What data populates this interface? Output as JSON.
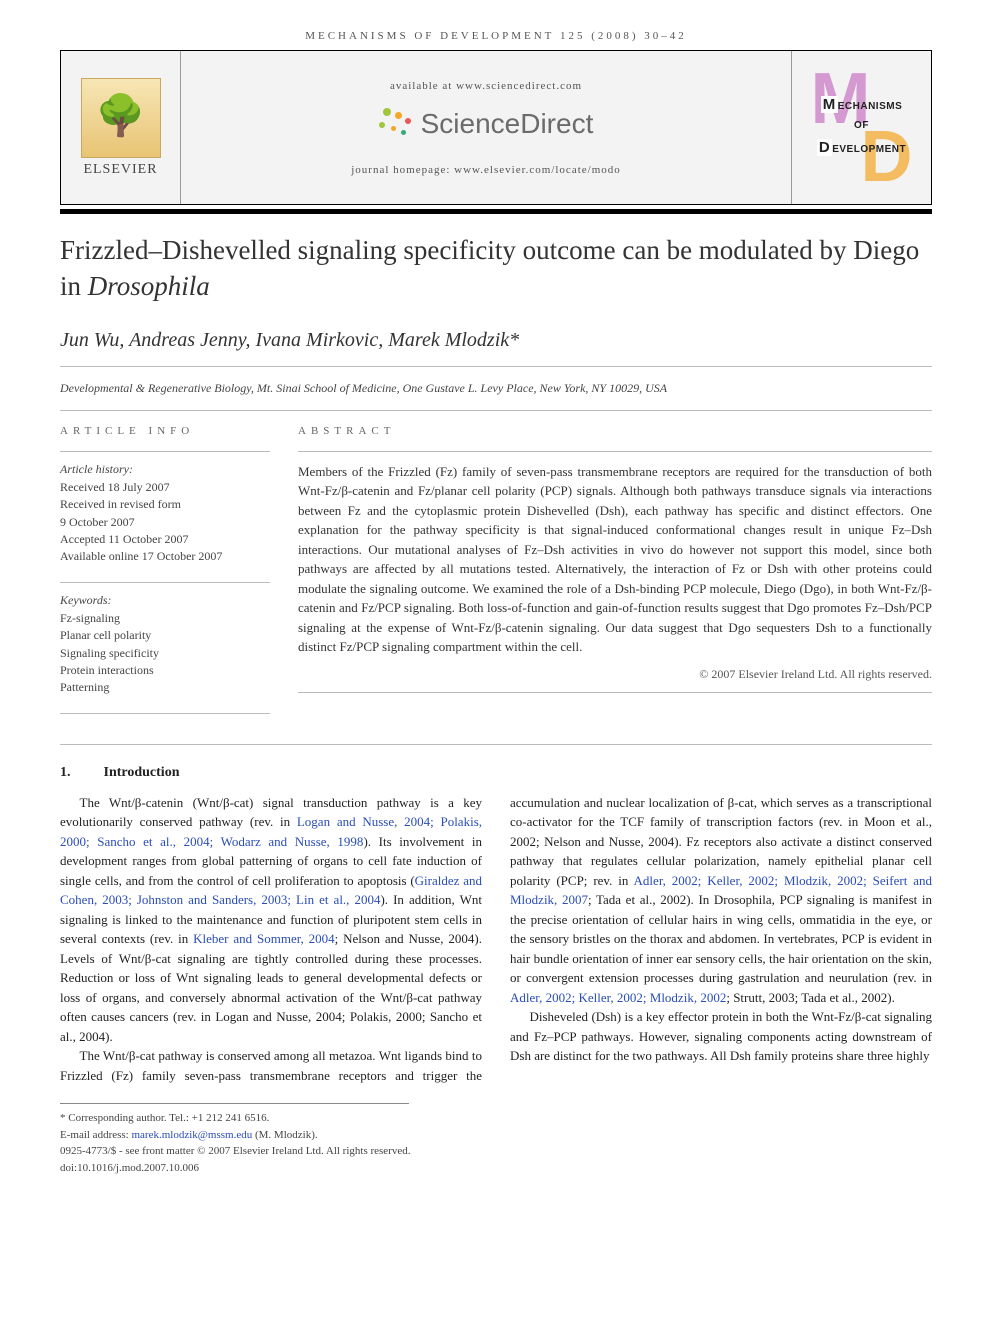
{
  "header": {
    "running_head": "MECHANISMS OF DEVELOPMENT 125 (2008) 30–42",
    "available_at": "available at www.sciencedirect.com",
    "sd_name": "ScienceDirect",
    "homepage": "journal homepage: www.elsevier.com/locate/modo",
    "elsevier_name": "ELSEVIER",
    "journal_logo": {
      "line1": "MECHANISMS",
      "line2": "OF",
      "line3": "DEVELOPMENT",
      "big_m": "M",
      "big_d": "D"
    }
  },
  "article": {
    "title_html": "Frizzled–Dishevelled signaling specificity outcome can be modulated by Diego in <em>Drosophila</em>",
    "authors": "Jun Wu, Andreas Jenny, Ivana Mirkovic, Marek Mlodzik*",
    "affiliation": "Developmental & Regenerative Biology, Mt. Sinai School of Medicine, One Gustave L. Levy Place, New York, NY 10029, USA"
  },
  "article_info": {
    "label": "ARTICLE INFO",
    "history_heading": "Article history:",
    "history": [
      "Received 18 July 2007",
      "Received in revised form",
      "9 October 2007",
      "Accepted 11 October 2007",
      "Available online 17 October 2007"
    ],
    "keywords_heading": "Keywords:",
    "keywords": [
      "Fz-signaling",
      "Planar cell polarity",
      "Signaling specificity",
      "Protein interactions",
      "Patterning"
    ]
  },
  "abstract": {
    "label": "ABSTRACT",
    "text": "Members of the Frizzled (Fz) family of seven-pass transmembrane receptors are required for the transduction of both Wnt-Fz/β-catenin and Fz/planar cell polarity (PCP) signals. Although both pathways transduce signals via interactions between Fz and the cytoplasmic protein Dishevelled (Dsh), each pathway has specific and distinct effectors. One explanation for the pathway specificity is that signal-induced conformational changes result in unique Fz–Dsh interactions. Our mutational analyses of Fz–Dsh activities in vivo do however not support this model, since both pathways are affected by all mutations tested. Alternatively, the interaction of Fz or Dsh with other proteins could modulate the signaling outcome. We examined the role of a Dsh-binding PCP molecule, Diego (Dgo), in both Wnt-Fz/β-catenin and Fz/PCP signaling. Both loss-of-function and gain-of-function results suggest that Dgo promotes Fz–Dsh/PCP signaling at the expense of Wnt-Fz/β-catenin signaling. Our data suggest that Dgo sequesters Dsh to a functionally distinct Fz/PCP signaling compartment within the cell.",
    "copyright": "© 2007 Elsevier Ireland Ltd. All rights reserved."
  },
  "section1": {
    "num": "1.",
    "title": "Introduction"
  },
  "body": {
    "p1_a": "The Wnt/β-catenin (Wnt/β-cat) signal transduction pathway is a key evolutionarily conserved pathway (rev. in ",
    "p1_link1": "Logan and Nusse, 2004; Polakis, 2000; Sancho et al., 2004; Wodarz and Nusse, 1998",
    "p1_b": "). Its involvement in development ranges from global patterning of organs to cell fate induction of single cells, and from the control of cell proliferation to apoptosis (",
    "p1_link2": "Giraldez and Cohen, 2003; Johnston and Sanders, 2003; Lin et al., 2004",
    "p1_c": "). In addition, Wnt signaling is linked to the maintenance and function of pluripotent stem cells in several contexts (rev. in ",
    "p1_link3": "Kleber and Sommer, 2004",
    "p1_d": "; Nelson and Nusse, 2004). Levels of Wnt/β-cat signaling are tightly controlled during these processes. Reduction or loss of Wnt signaling leads to general developmental defects or loss of organs, and conversely abnormal activation of the Wnt/β-cat pathway often causes cancers (rev. in Logan and Nusse, 2004; Polakis, 2000; Sancho et al., 2004).",
    "p2_a": "The Wnt/β-cat pathway is conserved among all metazoa. Wnt ligands bind to Frizzled (Fz) family seven-pass trans",
    "p2_b": "membrane receptors and trigger the accumulation and nuclear localization of β-cat, which serves as a transcriptional co-activator for the TCF family of transcription factors (rev. in Moon et al., 2002; Nelson and Nusse, 2004). Fz receptors also activate a distinct conserved pathway that regulates cellular polarization, namely epithelial planar cell polarity (PCP; rev. in ",
    "p2_link1": "Adler, 2002; Keller, 2002; Mlodzik, 2002; Seifert and Mlodzik, 2007",
    "p2_c": "; Tada et al., 2002). In Drosophila, PCP signaling is manifest in the precise orientation of cellular hairs in wing cells, ommatidia in the eye, or the sensory bristles on the thorax and abdomen. In vertebrates, PCP is evident in hair bundle orientation of inner ear sensory cells, the hair orientation on the skin, or convergent extension processes during gastrulation and neurulation (rev. in ",
    "p2_link2": "Adler, 2002; Keller, 2002; Mlodzik, 2002",
    "p2_d": "; Strutt, 2003; Tada et al., 2002).",
    "p3": "Disheveled (Dsh) is a key effector protein in both the Wnt-Fz/β-cat signaling and Fz–PCP pathways. However, signaling components acting downstream of Dsh are distinct for the two pathways. All Dsh family proteins share three highly"
  },
  "footnotes": {
    "corresponding": "* Corresponding author. Tel.: +1 212 241 6516.",
    "email_label": "E-mail address: ",
    "email": "marek.mlodzik@mssm.edu",
    "email_name": " (M. Mlodzik).",
    "copyright": "0925-4773/$ - see front matter © 2007 Elsevier Ireland Ltd. All rights reserved.",
    "doi": "doi:10.1016/j.mod.2007.10.006"
  },
  "colors": {
    "link": "#2a4db7",
    "mod_purple": "#c873c4",
    "mod_orange": "#f5a623",
    "sd_grey": "#6b6b6b"
  }
}
